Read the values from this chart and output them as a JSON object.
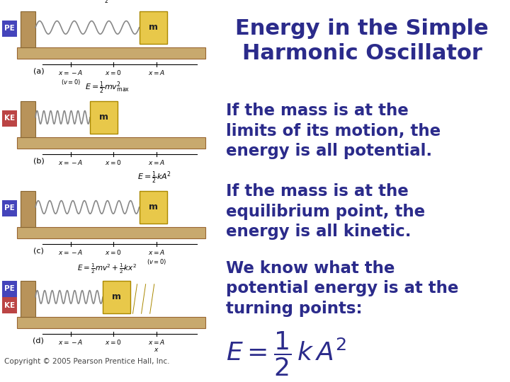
{
  "title": "Energy in the Simple\nHarmonic Oscillator",
  "title_color": "#2B2B8B",
  "title_fontsize": 22,
  "bg_color": "#FFFFFF",
  "text_color": "#2B2B8B",
  "body_fontsize": 16.5,
  "para1": "If the mass is at the\nlimits of its motion, the\nenergy is all potential.",
  "para2": "If the mass is at the\nequilibrium point, the\nenergy is all kinetic.",
  "para3": "We know what the\npotential energy is at the\nturning points:",
  "formula": "$E = \\dfrac{1}{2}\\,k\\,A^2$",
  "formula_fontsize": 26,
  "copyright": "Copyright © 2005 Pearson Prentice Hall, Inc.",
  "copyright_fontsize": 7.5,
  "tan_color": "#C8A96E",
  "spring_color": "#888888",
  "mass_color": "#E8C84A",
  "wall_color": "#B8935A",
  "pe_label_color": "#4444CC",
  "ke_label_color": "#CC4444",
  "diagram_bg": "#FFFFFF"
}
